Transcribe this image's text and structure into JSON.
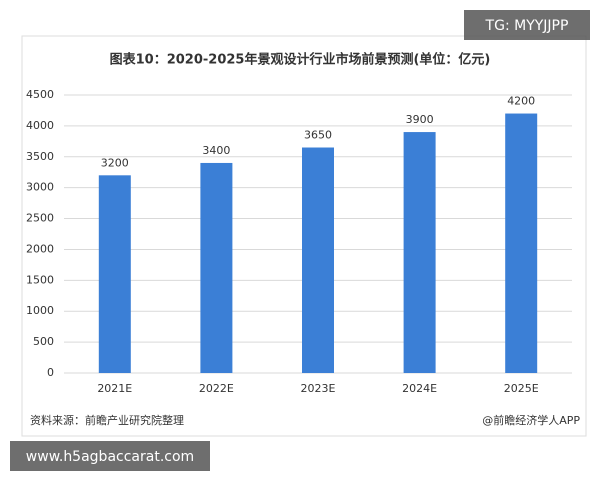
{
  "chart_data": {
    "type": "bar",
    "title": "图表10：2020-2025年景观设计行业市场前景预测(单位：亿元)",
    "categories": [
      "2021E",
      "2022E",
      "2023E",
      "2024E",
      "2025E"
    ],
    "values": [
      3200,
      3400,
      3650,
      3900,
      4200
    ],
    "color": "#3b7fd6",
    "ylim": [
      0,
      4500
    ],
    "yticks": [
      0,
      500,
      1000,
      1500,
      2000,
      2500,
      3000,
      3500,
      4000,
      4500
    ],
    "grid": true
  },
  "source": "资料来源：前瞻产业研究院整理",
  "credit": "@前瞻经济学人APP",
  "overlay_top": "TG: MYYJJPP",
  "overlay_bottom": "www.h5agbaccarat.com"
}
